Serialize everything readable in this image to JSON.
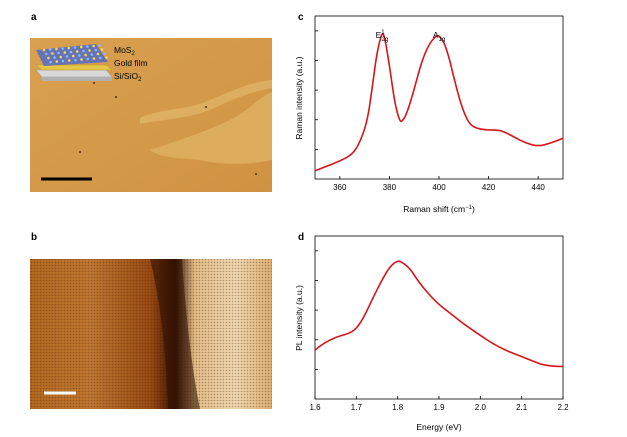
{
  "panels": {
    "a": {
      "letter": "a",
      "labels": {
        "mos2": "MoS",
        "mos2_sub": "2",
        "gold": "Gold film",
        "sisio2": "Si/SiO",
        "sisio2_sub": "2"
      }
    },
    "b": {
      "letter": "b"
    },
    "c": {
      "letter": "c"
    },
    "d": {
      "letter": "d"
    }
  },
  "chart_data": [
    {
      "type": "line",
      "panel": "c",
      "xlabel": "Raman shift (cm",
      "xlabel_sup": "−1",
      "xlabel_end": ")",
      "ylabel": "Raman intensity (a.u.)",
      "xlim": [
        350,
        450
      ],
      "xticks": [
        360,
        380,
        400,
        420,
        440
      ],
      "ylim": [
        0,
        1
      ],
      "peak_labels": [
        {
          "text": "E",
          "sup": "1",
          "sub": "2g",
          "x": 377
        },
        {
          "text": "A",
          "sub": "1g",
          "x": 400
        }
      ],
      "series": [
        {
          "color": "#d8141b",
          "x": [
            350,
            355,
            360,
            365,
            368,
            371,
            373,
            375,
            377,
            378,
            380,
            382,
            384,
            385,
            387,
            390,
            393,
            396,
            399,
            400,
            402,
            404,
            406,
            409,
            412,
            415,
            420,
            425,
            430,
            435,
            440,
            445,
            450
          ],
          "y": [
            0.05,
            0.08,
            0.11,
            0.15,
            0.22,
            0.35,
            0.55,
            0.78,
            0.9,
            0.88,
            0.7,
            0.48,
            0.36,
            0.35,
            0.4,
            0.55,
            0.72,
            0.83,
            0.88,
            0.88,
            0.84,
            0.75,
            0.62,
            0.45,
            0.34,
            0.31,
            0.3,
            0.3,
            0.26,
            0.22,
            0.2,
            0.22,
            0.25
          ]
        }
      ]
    },
    {
      "type": "line",
      "panel": "d",
      "xlabel": "Energy (eV)",
      "ylabel": "PL intensity (a.u.)",
      "xlim": [
        1.6,
        2.2
      ],
      "xticks": [
        "1.6",
        "1.7",
        "1.8",
        "1.9",
        "2.0",
        "2.1",
        "2.2"
      ],
      "ylim": [
        0,
        1
      ],
      "series": [
        {
          "color": "#d8141b",
          "x": [
            1.6,
            1.62,
            1.65,
            1.68,
            1.7,
            1.72,
            1.74,
            1.76,
            1.78,
            1.8,
            1.81,
            1.83,
            1.85,
            1.88,
            1.9,
            1.93,
            1.96,
            2.0,
            2.03,
            2.06,
            2.1,
            2.13,
            2.15,
            2.18,
            2.2
          ],
          "y": [
            0.3,
            0.34,
            0.38,
            0.4,
            0.43,
            0.51,
            0.62,
            0.72,
            0.81,
            0.85,
            0.84,
            0.8,
            0.72,
            0.63,
            0.58,
            0.52,
            0.46,
            0.39,
            0.34,
            0.3,
            0.26,
            0.23,
            0.21,
            0.2,
            0.2
          ]
        }
      ]
    }
  ]
}
